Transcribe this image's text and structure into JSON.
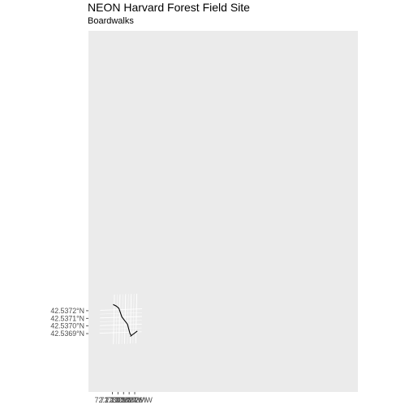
{
  "map": {
    "title": "NEON Harvard Forest Field Site",
    "subtitle": "Boardwalks",
    "panel_color": "#EBEBEB",
    "grid_color": "#FFFFFF",
    "line_color": "#000000",
    "tick_label_color": "#4D4D4D",
    "y_ticks": [
      {
        "value": 42.5372,
        "label": "42.5372°N"
      },
      {
        "value": 42.5371,
        "label": "42.5371°N"
      },
      {
        "value": 42.537,
        "label": "42.5370°N"
      },
      {
        "value": 42.5369,
        "label": "42.5369°N"
      }
    ],
    "x_ticks": [
      {
        "value": -72.173,
        "label": "72.1730°W"
      },
      {
        "value": -72.1729,
        "label": "72.1729°W"
      },
      {
        "value": -72.1728,
        "label": "72.1728°W"
      },
      {
        "value": -72.1727,
        "label": "72.1727°W"
      },
      {
        "value": -72.1726,
        "label": "72.1726°W"
      }
    ],
    "lon_range": [
      -72.1731,
      -72.17255
    ],
    "lat_range": [
      42.53682,
      42.53731
    ]
  },
  "boardwalks": [
    {
      "id": "main",
      "coords": [
        [
          -72.17302,
          42.537271
        ],
        [
          -72.172961,
          42.537248
        ],
        [
          -72.172915,
          42.537217
        ],
        [
          -72.172858,
          42.537103
        ],
        [
          -72.172755,
          42.537004
        ],
        [
          -72.172708,
          42.536884
        ],
        [
          -72.172685,
          42.536855
        ]
      ]
    },
    {
      "id": "branch",
      "coords": [
        [
          -72.1727,
          42.536844
        ],
        [
          -72.172577,
          42.536912
        ]
      ]
    }
  ]
}
